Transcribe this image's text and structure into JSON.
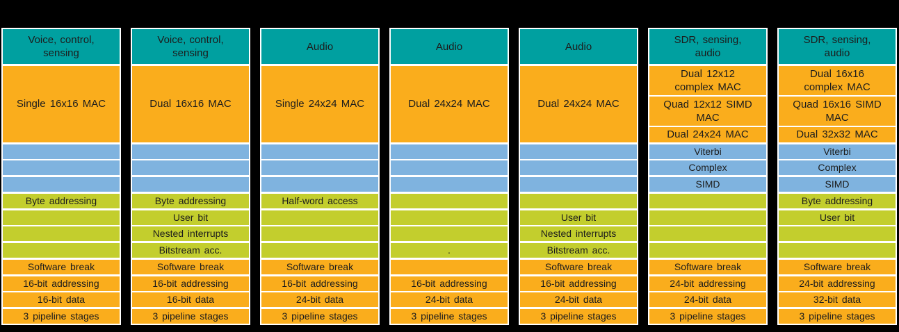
{
  "colors": {
    "teal_domain_header": "#00A0A0",
    "orange_block": "#FAAD1C",
    "blue_accelerator_row": "#7FB3DF",
    "green_feature_row": "#C3CE2D",
    "card_background": "#FFFFFF",
    "page_background": "#000000",
    "text": "#1C1C1C"
  },
  "columns": [
    {
      "domain": "Voice, control,\nsensing",
      "mac_blocks": [
        "Single 16x16 MAC"
      ],
      "accel_rows": [
        "",
        "",
        ""
      ],
      "feature_rows": [
        "Byte addressing",
        "",
        "",
        ""
      ],
      "base_rows": [
        "Software break",
        "16-bit addressing",
        "16-bit data",
        "3 pipeline stages"
      ]
    },
    {
      "domain": "Voice, control,\nsensing",
      "mac_blocks": [
        "Dual 16x16 MAC"
      ],
      "accel_rows": [
        "",
        "",
        ""
      ],
      "feature_rows": [
        "Byte addressing",
        "User bit",
        "Nested interrupts",
        "Bitstream acc."
      ],
      "base_rows": [
        "Software break",
        "16-bit addressing",
        "16-bit data",
        "3 pipeline stages"
      ]
    },
    {
      "domain": "Audio",
      "mac_blocks": [
        "Single 24x24 MAC"
      ],
      "accel_rows": [
        "",
        "",
        ""
      ],
      "feature_rows": [
        "Half-word access",
        "",
        "",
        ""
      ],
      "base_rows": [
        "Software break",
        "16-bit addressing",
        "24-bit data",
        "3 pipeline stages"
      ]
    },
    {
      "domain": "Audio",
      "mac_blocks": [
        "Dual 24x24 MAC"
      ],
      "accel_rows": [
        "",
        "",
        ""
      ],
      "feature_rows": [
        "",
        "",
        "",
        "."
      ],
      "base_rows": [
        "",
        "16-bit addressing",
        "24-bit data",
        "3 pipeline stages"
      ]
    },
    {
      "domain": "Audio",
      "mac_blocks": [
        "Dual 24x24 MAC"
      ],
      "accel_rows": [
        "",
        "",
        ""
      ],
      "feature_rows": [
        "",
        "User bit",
        "Nested interrupts",
        "Bitstream acc."
      ],
      "base_rows": [
        "Software break",
        "16-bit addressing",
        "24-bit data",
        "3 pipeline stages"
      ]
    },
    {
      "domain": "SDR, sensing,\naudio",
      "mac_blocks": [
        "Dual 12x12\ncomplex MAC",
        "Quad 12x12 SIMD\nMAC",
        "Dual 24x24 MAC"
      ],
      "accel_rows": [
        "Viterbi",
        "Complex",
        "SIMD"
      ],
      "feature_rows": [
        "",
        "",
        "",
        ""
      ],
      "base_rows": [
        "Software break",
        "24-bit addressing",
        "24-bit data",
        "3 pipeline stages"
      ]
    },
    {
      "domain": "SDR, sensing,\naudio",
      "mac_blocks": [
        "Dual 16x16\ncomplex MAC",
        "Quad 16x16 SIMD\nMAC",
        "Dual 32x32 MAC"
      ],
      "accel_rows": [
        "Viterbi",
        "Complex",
        "SIMD"
      ],
      "feature_rows": [
        "Byte addressing",
        "User bit",
        "",
        ""
      ],
      "base_rows": [
        "Software break",
        "24-bit addressing",
        "32-bit data",
        "3 pipeline stages"
      ]
    }
  ]
}
